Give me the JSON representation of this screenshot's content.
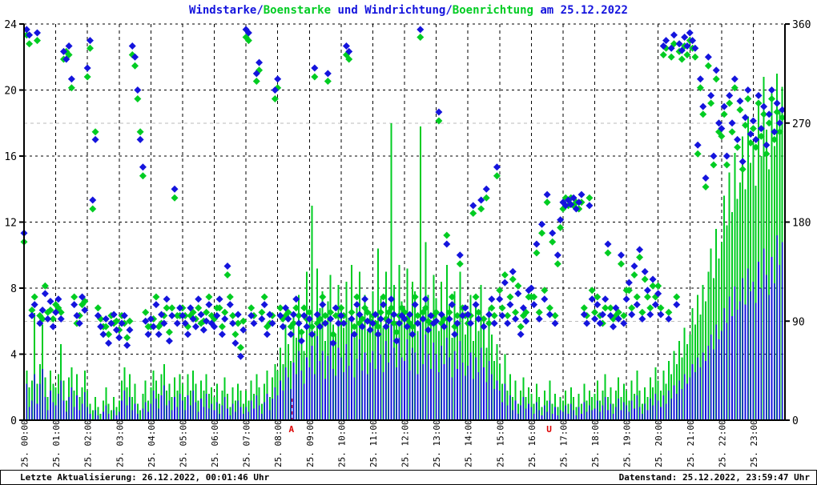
{
  "title": {
    "segments": [
      {
        "text": "Windstarke",
        "color": "#1414dd"
      },
      {
        "text": "/",
        "color": "#1414dd"
      },
      {
        "text": "Boenstarke",
        "color": "#00cc22"
      },
      {
        "text": " und ",
        "color": "#1414dd"
      },
      {
        "text": "Windrichtung",
        "color": "#1414dd"
      },
      {
        "text": "/",
        "color": "#1414dd"
      },
      {
        "text": "Boenrichtung",
        "color": "#00cc22"
      },
      {
        "text": " am 25.12.2022",
        "color": "#1414dd"
      }
    ]
  },
  "footer": {
    "left": "Letzte Aktualisierung: 26.12.2022, 00:01:46 Uhr",
    "right": "Datenstand: 25.12.2022, 23:59:47 Uhr"
  },
  "chart_data": {
    "type": "mixed",
    "title": "Windstarke/Boenstarke und Windrichtung/Boenrichtung am 25.12.2022",
    "sample_minutes": 5,
    "x_hours": 24,
    "xticklabels": [
      "25. 00:00",
      "25. 01:00",
      "25. 02:00",
      "25. 03:00",
      "25. 04:00",
      "25. 05:00",
      "25. 06:00",
      "25. 07:00",
      "25. 08:00",
      "25. 09:00",
      "25. 10:00",
      "25. 11:00",
      "25. 12:00",
      "25. 13:00",
      "25. 14:00",
      "25. 15:00",
      "25. 16:00",
      "25. 17:00",
      "25. 18:00",
      "25. 19:00",
      "25. 20:00",
      "25. 21:00",
      "25. 22:00",
      "25. 23:00"
    ],
    "ylim_left": [
      0,
      24
    ],
    "yticks_left": [
      0,
      4,
      8,
      12,
      16,
      20,
      24
    ],
    "ylim_right": [
      0,
      360
    ],
    "yticks_right": [
      0,
      90,
      180,
      270,
      360
    ],
    "grid": {
      "vertical_each_hour": true,
      "horizontal_left_values": [
        4,
        8,
        12,
        16,
        20,
        24
      ],
      "horizontal_right_gray_values": [
        90,
        270
      ],
      "gray_color": "#bbbbbb"
    },
    "annotations": [
      {
        "label": "A",
        "hour": 8.45,
        "color": "#dd0000"
      },
      {
        "label": "U",
        "hour": 16.58,
        "color": "#dd0000"
      }
    ],
    "series": [
      {
        "name": "Boenstarke",
        "type": "impulse",
        "axis": "left",
        "color": "#00cc22",
        "values": [
          2.8,
          3.0,
          2.0,
          2.4,
          6.5,
          2.2,
          3.4,
          5.8,
          2.6,
          1.4,
          3.0,
          2.2,
          2.0,
          2.8,
          4.6,
          2.4,
          1.2,
          2.6,
          3.2,
          1.8,
          2.8,
          1.4,
          2.0,
          3.0,
          1.8,
          1.0,
          0.6,
          1.4,
          0.8,
          0.4,
          1.2,
          2.0,
          1.0,
          0.6,
          1.4,
          0.8,
          1.2,
          2.4,
          3.2,
          2.0,
          2.8,
          1.4,
          2.2,
          1.0,
          0.6,
          1.6,
          2.4,
          1.2,
          2.0,
          3.0,
          2.4,
          1.6,
          2.8,
          3.4,
          1.8,
          2.2,
          1.4,
          2.6,
          1.8,
          2.8,
          2.2,
          1.4,
          2.8,
          1.8,
          3.0,
          2.2,
          1.2,
          2.4,
          1.8,
          2.8,
          1.6,
          2.0,
          1.4,
          2.2,
          1.0,
          1.8,
          2.6,
          1.6,
          0.8,
          2.0,
          1.2,
          2.2,
          1.8,
          1.0,
          1.8,
          1.2,
          2.4,
          1.6,
          2.8,
          2.0,
          1.0,
          2.2,
          3.0,
          1.4,
          2.6,
          3.4,
          3.0,
          4.4,
          3.4,
          5.8,
          4.6,
          3.6,
          6.4,
          5.0,
          7.6,
          5.4,
          4.2,
          9.0,
          6.2,
          13.0,
          5.4,
          9.2,
          6.8,
          7.8,
          4.8,
          7.2,
          8.8,
          5.8,
          5.2,
          8.2,
          7.0,
          5.6,
          8.4,
          6.2,
          9.4,
          5.0,
          6.8,
          9.0,
          5.8,
          7.6,
          5.4,
          6.6,
          7.8,
          5.8,
          10.4,
          7.4,
          5.6,
          9.0,
          6.6,
          18.0,
          8.2,
          6.0,
          9.4,
          7.2,
          6.8,
          9.2,
          5.6,
          8.4,
          7.8,
          5.4,
          17.8,
          6.4,
          10.8,
          7.6,
          5.8,
          8.8,
          7.4,
          5.4,
          8.4,
          6.4,
          9.4,
          7.0,
          5.0,
          7.8,
          5.8,
          9.0,
          6.6,
          5.2,
          6.2,
          7.6,
          4.8,
          7.0,
          5.4,
          8.2,
          6.0,
          4.4,
          6.8,
          5.2,
          3.6,
          4.6,
          3.4,
          2.2,
          4.0,
          1.8,
          2.8,
          1.4,
          2.4,
          1.0,
          1.8,
          2.6,
          1.4,
          2.0,
          1.6,
          1.0,
          2.2,
          1.4,
          0.8,
          1.8,
          1.2,
          2.4,
          1.0,
          1.6,
          0.8,
          1.4,
          1.2,
          1.8,
          1.0,
          2.0,
          1.4,
          0.8,
          1.6,
          1.0,
          2.2,
          1.2,
          1.8,
          1.4,
          1.6,
          2.4,
          1.2,
          1.8,
          2.8,
          1.4,
          2.0,
          1.0,
          1.8,
          2.6,
          1.4,
          2.2,
          1.8,
          1.2,
          2.4,
          1.6,
          3.0,
          1.8,
          1.0,
          2.0,
          1.4,
          2.6,
          2.0,
          3.2,
          2.4,
          1.8,
          3.0,
          2.2,
          3.6,
          2.8,
          4.2,
          3.4,
          4.8,
          3.8,
          5.6,
          4.6,
          5.2,
          6.8,
          5.8,
          7.6,
          6.4,
          8.2,
          7.2,
          9.0,
          10.4,
          8.6,
          11.6,
          9.8,
          10.8,
          13.6,
          11.8,
          15.0,
          12.6,
          16.2,
          13.4,
          14.4,
          17.2,
          14.0,
          18.4,
          15.6,
          16.8,
          14.2,
          19.2,
          16.0,
          20.8,
          17.6,
          15.2,
          19.8,
          16.6,
          21.0,
          18.8,
          20.2
        ]
      },
      {
        "name": "Windstarke",
        "type": "impulse",
        "axis": "left",
        "color": "#1414dd",
        "values": [
          1.5,
          2.2,
          0.8,
          1.2,
          2.8,
          1.0,
          2.2,
          3.1,
          1.4,
          0.6,
          1.8,
          1.1,
          0.9,
          1.6,
          2.4,
          1.2,
          0.5,
          1.4,
          2.0,
          0.8,
          1.5,
          0.6,
          1.0,
          1.7,
          0.8,
          0.4,
          0.0,
          0.6,
          0.3,
          0.0,
          0.5,
          0.9,
          0.4,
          0.0,
          0.6,
          0.3,
          0.5,
          1.2,
          1.8,
          0.9,
          1.4,
          0.6,
          1.0,
          0.4,
          0.0,
          0.7,
          1.1,
          0.5,
          1.0,
          1.8,
          1.3,
          0.7,
          1.5,
          2.1,
          0.9,
          1.2,
          0.6,
          1.4,
          0.8,
          1.6,
          1.2,
          0.6,
          1.5,
          0.9,
          1.8,
          1.1,
          0.5,
          1.3,
          0.8,
          1.6,
          0.7,
          1.0,
          0.6,
          1.1,
          0.4,
          0.9,
          1.4,
          0.7,
          0.3,
          1.0,
          0.5,
          1.2,
          0.8,
          0.4,
          0.8,
          0.5,
          1.2,
          0.7,
          1.5,
          0.9,
          0.4,
          1.1,
          1.6,
          0.6,
          1.3,
          2.0,
          1.5,
          2.4,
          1.8,
          3.2,
          2.6,
          1.9,
          3.5,
          2.8,
          4.2,
          3.0,
          2.2,
          3.8,
          3.2,
          4.5,
          2.8,
          5.1,
          3.6,
          4.2,
          2.5,
          3.9,
          4.8,
          3.1,
          2.7,
          4.4,
          3.8,
          2.9,
          4.6,
          3.3,
          5.2,
          2.6,
          3.7,
          4.9,
          3.0,
          4.1,
          2.8,
          3.5,
          4.2,
          3.1,
          5.6,
          4.0,
          2.9,
          4.8,
          3.5,
          6.1,
          4.4,
          3.2,
          5.0,
          3.8,
          3.6,
          4.9,
          3.0,
          4.4,
          4.1,
          2.8,
          5.9,
          3.4,
          5.2,
          4.0,
          3.1,
          4.7,
          4.0,
          2.9,
          4.5,
          3.4,
          5.0,
          3.8,
          2.6,
          4.2,
          3.1,
          4.8,
          3.5,
          2.7,
          3.3,
          4.1,
          2.5,
          3.8,
          2.9,
          4.4,
          3.2,
          2.3,
          3.6,
          2.8,
          1.9,
          2.4,
          1.8,
          1.1,
          2.2,
          0.9,
          1.5,
          0.6,
          1.2,
          0.4,
          0.9,
          1.4,
          0.7,
          1.0,
          0.8,
          0.4,
          1.1,
          0.6,
          0.3,
          0.9,
          0.5,
          1.2,
          0.4,
          0.8,
          0.3,
          0.6,
          0.5,
          0.9,
          0.4,
          1.0,
          0.6,
          0.3,
          0.8,
          0.4,
          1.1,
          0.5,
          0.9,
          0.6,
          0.7,
          1.2,
          0.5,
          0.9,
          1.4,
          0.6,
          1.0,
          0.4,
          0.8,
          1.3,
          0.6,
          1.1,
          0.9,
          0.5,
          1.2,
          0.7,
          1.5,
          0.8,
          0.4,
          1.0,
          0.6,
          1.3,
          0.9,
          1.6,
          1.2,
          0.8,
          1.5,
          1.0,
          1.8,
          1.3,
          2.1,
          1.6,
          2.4,
          1.9,
          2.8,
          2.2,
          2.6,
          3.4,
          2.9,
          3.8,
          3.2,
          4.1,
          3.6,
          4.5,
          5.2,
          4.3,
          5.8,
          4.9,
          5.4,
          6.8,
          5.9,
          7.5,
          6.3,
          8.1,
          6.7,
          7.2,
          8.6,
          7.0,
          9.2,
          7.8,
          8.4,
          7.1,
          9.6,
          8.0,
          10.4,
          8.8,
          7.6,
          9.9,
          8.3,
          11.2,
          9.4,
          10.8
        ]
      },
      {
        "name": "Boenrichtung",
        "type": "diamond",
        "axis": "right",
        "color": "#00cc22",
        "values": [
          162,
          350,
          342,
          100,
          112,
          345,
          95,
          92,
          122,
          98,
          100,
          92,
          105,
          102,
          98,
          328,
          335,
          332,
          302,
          112,
          88,
          95,
          105,
          108,
          312,
          338,
          192,
          262,
          102,
          92,
          85,
          85,
          78,
          95,
          88,
          90,
          82,
          95,
          88,
          75,
          90,
          332,
          322,
          292,
          262,
          222,
          98,
          85,
          85,
          92,
          112,
          85,
          88,
          95,
          102,
          80,
          102,
          202,
          95,
          95,
          102,
          95,
          85,
          95,
          98,
          92,
          102,
          88,
          90,
          98,
          112,
          95,
          92,
          102,
          102,
          85,
          98,
          132,
          112,
          95,
          78,
          88,
          66,
          90,
          348,
          345,
          102,
          95,
          308,
          318,
          98,
          112,
          85,
          88,
          95,
          292,
          302,
          102,
          92,
          95,
          98,
          85,
          88,
          102,
          95,
          80,
          102,
          92,
          98,
          85,
          312,
          88,
          92,
          112,
          95,
          308,
          98,
          78,
          95,
          95,
          102,
          95,
          332,
          328,
          98,
          85,
          112,
          88,
          92,
          102,
          98,
          90,
          95,
          88,
          85,
          98,
          112,
          92,
          98,
          102,
          88,
          80,
          95,
          102,
          98,
          92,
          88,
          85,
          112,
          95,
          348,
          98,
          102,
          90,
          88,
          95,
          98,
          272,
          88,
          92,
          168,
          98,
          112,
          85,
          95,
          142,
          102,
          95,
          88,
          95,
          188,
          112,
          98,
          192,
          92,
          202,
          88,
          102,
          95,
          222,
          118,
          102,
          132,
          95,
          112,
          128,
          98,
          122,
          85,
          95,
          98,
          112,
          112,
          112,
          152,
          98,
          170,
          118,
          198,
          102,
          162,
          95,
          142,
          175,
          192,
          202,
          195,
          202,
          195,
          198,
          192,
          198,
          102,
          95,
          202,
          118,
          98,
          112,
          95,
          88,
          102,
          152,
          102,
          92,
          95,
          98,
          142,
          95,
          118,
          118,
          102,
          132,
          112,
          148,
          98,
          128,
          112,
          102,
          122,
          112,
          122,
          102,
          332,
          338,
          98,
          330,
          342,
          112,
          335,
          328,
          340,
          332,
          345,
          338,
          330,
          242,
          302,
          278,
          212,
          322,
          288,
          232,
          310,
          262,
          258,
          278,
          232,
          288,
          262,
          302,
          248,
          282,
          228,
          268,
          292,
          252,
          265,
          248,
          288,
          258,
          278,
          242,
          270,
          292,
          255,
          280,
          262,
          275
        ]
      },
      {
        "name": "Windrichtung",
        "type": "diamond",
        "axis": "right",
        "color": "#1414dd",
        "values": [
          170,
          355,
          350,
          95,
          105,
          352,
          88,
          100,
          115,
          92,
          108,
          85,
          98,
          110,
          92,
          335,
          328,
          340,
          310,
          105,
          95,
          88,
          112,
          100,
          320,
          345,
          200,
          255,
          95,
          85,
          78,
          92,
          70,
          88,
          96,
          82,
          75,
          88,
          95,
          68,
          82,
          340,
          330,
          300,
          255,
          230,
          90,
          78,
          92,
          85,
          105,
          78,
          96,
          88,
          110,
          72,
          95,
          210,
          88,
          102,
          95,
          88,
          78,
          102,
          92,
          85,
          110,
          96,
          82,
          90,
          105,
          88,
          85,
          95,
          110,
          78,
          92,
          140,
          105,
          88,
          70,
          96,
          58,
          82,
          355,
          352,
          95,
          88,
          315,
          325,
          92,
          105,
          78,
          96,
          88,
          300,
          310,
          95,
          85,
          102,
          92,
          78,
          96,
          110,
          88,
          72,
          95,
          85,
          92,
          78,
          320,
          96,
          85,
          105,
          88,
          315,
          92,
          70,
          102,
          88,
          95,
          88,
          340,
          335,
          92,
          78,
          105,
          96,
          85,
          110,
          90,
          82,
          88,
          96,
          78,
          92,
          105,
          85,
          90,
          110,
          96,
          72,
          88,
          95,
          92,
          85,
          96,
          78,
          105,
          88,
          355,
          92,
          110,
          82,
          95,
          88,
          90,
          280,
          96,
          85,
          160,
          92,
          105,
          78,
          88,
          150,
          95,
          102,
          96,
          88,
          195,
          105,
          92,
          200,
          85,
          210,
          96,
          110,
          88,
          230,
          110,
          95,
          125,
          88,
          105,
          135,
          92,
          115,
          78,
          102,
          90,
          118,
          120,
          105,
          160,
          92,
          178,
          110,
          205,
          96,
          170,
          88,
          150,
          182,
          198,
          195,
          200,
          196,
          202,
          192,
          198,
          205,
          96,
          88,
          195,
          110,
          92,
          105,
          88,
          96,
          110,
          160,
          95,
          85,
          102,
          92,
          150,
          88,
          110,
          125,
          96,
          140,
          105,
          155,
          92,
          135,
          118,
          96,
          128,
          105,
          115,
          96,
          340,
          345,
          92,
          338,
          350,
          105,
          342,
          336,
          348,
          340,
          352,
          345,
          338,
          250,
          310,
          285,
          220,
          330,
          295,
          240,
          318,
          270,
          265,
          285,
          240,
          295,
          270,
          310,
          255,
          290,
          235,
          275,
          300,
          260,
          272,
          255,
          295,
          265,
          285,
          250,
          278,
          300,
          262,
          288,
          270,
          282
        ]
      }
    ]
  }
}
